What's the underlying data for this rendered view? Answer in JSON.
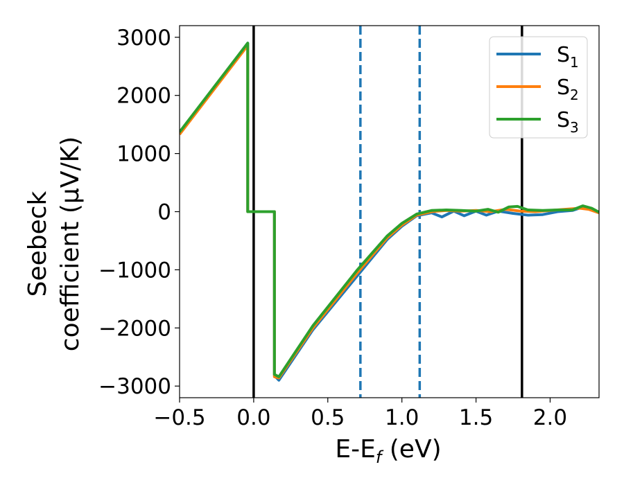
{
  "chart_data": {
    "type": "line",
    "xlabel": {
      "main": "E-E",
      "sub": "f",
      "unit": " (eV)"
    },
    "ylabel": {
      "line1": "Seebeck",
      "line2": "coefficient  (μV/K)"
    },
    "xlim": [
      -0.5,
      2.33
    ],
    "ylim": [
      -3200,
      3200
    ],
    "xticks": [
      -0.5,
      0.0,
      0.5,
      1.0,
      1.5,
      2.0
    ],
    "xtick_labels": [
      "−0.5",
      "0.0",
      "0.5",
      "1.0",
      "1.5",
      "2.0"
    ],
    "yticks": [
      3000,
      2000,
      1000,
      0,
      -1000,
      -2000,
      -3000
    ],
    "ytick_labels": [
      "3000",
      "2000",
      "1000",
      "0",
      "−1000",
      "−2000",
      "−3000"
    ],
    "vlines": [
      {
        "x": 0.0,
        "style": "solid",
        "color": "#000000"
      },
      {
        "x": 0.72,
        "style": "dashed",
        "color": "#1f77b4"
      },
      {
        "x": 1.12,
        "style": "dashed",
        "color": "#1f77b4"
      },
      {
        "x": 1.81,
        "style": "solid",
        "color": "#000000"
      }
    ],
    "series": [
      {
        "name": "S",
        "sub": "1",
        "color": "#1f77b4",
        "x": [
          -0.5,
          -0.04,
          -0.04,
          0.14,
          0.14,
          0.17,
          0.4,
          0.7,
          0.9,
          1.0,
          1.1,
          1.2,
          1.27,
          1.35,
          1.42,
          1.5,
          1.57,
          1.65,
          1.75,
          1.85,
          1.95,
          2.05,
          2.15,
          2.22,
          2.28,
          2.33
        ],
        "y": [
          1350,
          2900,
          0,
          0,
          -2820,
          -2900,
          -2030,
          -1100,
          -480,
          -250,
          -70,
          -20,
          -90,
          10,
          -70,
          10,
          -60,
          10,
          -30,
          -60,
          -50,
          0,
          20,
          80,
          30,
          -20
        ]
      },
      {
        "name": "S",
        "sub": "2",
        "color": "#ff7f0e",
        "x": [
          -0.5,
          -0.04,
          -0.04,
          0.14,
          0.14,
          0.17,
          0.4,
          0.7,
          0.9,
          1.0,
          1.1,
          1.2,
          1.3,
          1.4,
          1.5,
          1.6,
          1.7,
          1.8,
          1.9,
          2.0,
          2.1,
          2.2,
          2.26,
          2.33
        ],
        "y": [
          1330,
          2860,
          0,
          0,
          -2840,
          -2860,
          -2000,
          -1050,
          -450,
          -230,
          -60,
          0,
          20,
          10,
          20,
          0,
          40,
          10,
          0,
          20,
          40,
          60,
          40,
          -20
        ]
      },
      {
        "name": "S",
        "sub": "3",
        "color": "#2ca02c",
        "x": [
          -0.5,
          -0.04,
          -0.04,
          0.14,
          0.14,
          0.17,
          0.4,
          0.7,
          0.9,
          1.0,
          1.1,
          1.2,
          1.3,
          1.4,
          1.5,
          1.58,
          1.65,
          1.72,
          1.78,
          1.85,
          1.95,
          2.05,
          2.15,
          2.22,
          2.28,
          2.33
        ],
        "y": [
          1370,
          2900,
          0,
          0,
          -2800,
          -2840,
          -1960,
          -1000,
          -420,
          -200,
          -40,
          20,
          30,
          20,
          10,
          40,
          -10,
          80,
          90,
          30,
          20,
          30,
          30,
          100,
          60,
          -10
        ]
      }
    ],
    "legend": {
      "placement": "top-right"
    },
    "grid": false
  }
}
